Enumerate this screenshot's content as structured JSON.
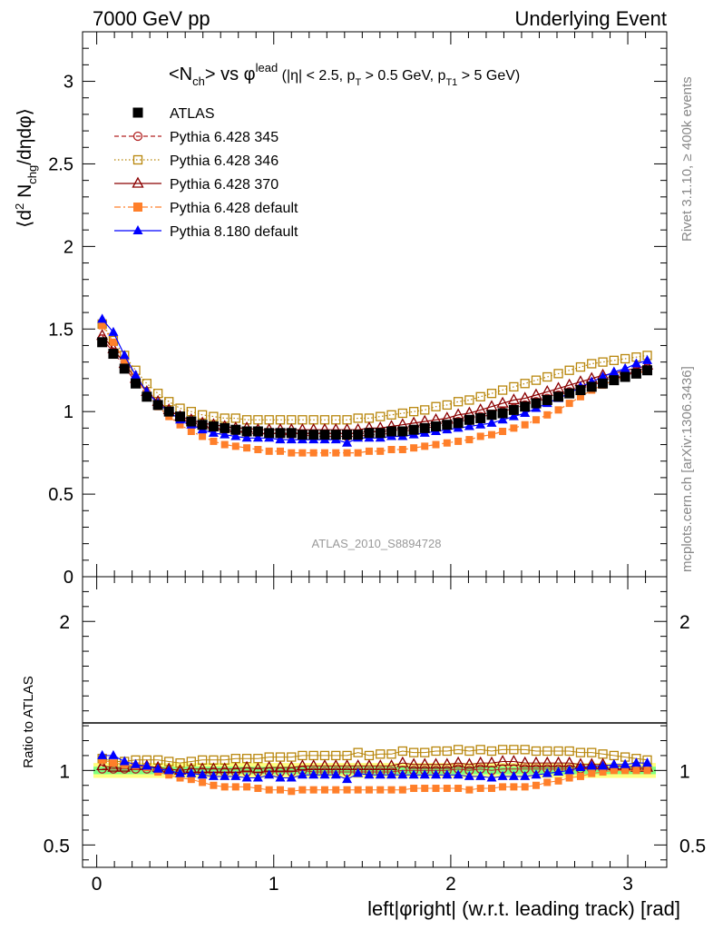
{
  "header": {
    "left": "7000 GeV pp",
    "right": "Underlying Event"
  },
  "side_labels": {
    "rivet": "Rivet 3.1.10, ≥ 400k events",
    "mcplots": "mcplots.cern.ch [arXiv:1306.3436]"
  },
  "chart_data": [
    {
      "type": "scatter",
      "panel": "main",
      "title": "<N_ch> vs φ^lead (|η| < 2.5, p_T > 0.5 GeV, p_T1 > 5 GeV)",
      "xlabel": "left|φright| (w.r.t. leading track) [rad]",
      "ylabel": "⟨d² N_chg/dηdφ⟩",
      "watermark": "ATLAS_2010_S8894728",
      "xlim": [
        -0.08,
        3.22
      ],
      "ylim": [
        0,
        3.3
      ],
      "yticks": [
        0,
        0.5,
        1,
        1.5,
        2,
        2.5,
        3
      ],
      "xticks": [
        0,
        1,
        2,
        3
      ],
      "legend_position": "top-left",
      "x": [
        0.031,
        0.094,
        0.157,
        0.22,
        0.283,
        0.346,
        0.408,
        0.471,
        0.534,
        0.597,
        0.66,
        0.723,
        0.785,
        0.848,
        0.911,
        0.974,
        1.037,
        1.1,
        1.162,
        1.225,
        1.288,
        1.351,
        1.414,
        1.476,
        1.539,
        1.602,
        1.665,
        1.728,
        1.791,
        1.853,
        1.916,
        1.979,
        2.042,
        2.105,
        2.168,
        2.231,
        2.293,
        2.356,
        2.419,
        2.482,
        2.545,
        2.608,
        2.67,
        2.733,
        2.796,
        2.859,
        2.922,
        2.985,
        3.048,
        3.11
      ],
      "series": [
        {
          "name": "ATLAS",
          "color": "#000000",
          "marker": "square-filled",
          "values": [
            1.42,
            1.35,
            1.26,
            1.17,
            1.09,
            1.04,
            1.0,
            0.97,
            0.94,
            0.92,
            0.91,
            0.9,
            0.89,
            0.88,
            0.88,
            0.87,
            0.87,
            0.87,
            0.86,
            0.86,
            0.86,
            0.86,
            0.86,
            0.86,
            0.87,
            0.87,
            0.88,
            0.88,
            0.89,
            0.9,
            0.91,
            0.92,
            0.93,
            0.95,
            0.96,
            0.98,
            0.99,
            1.01,
            1.03,
            1.05,
            1.07,
            1.09,
            1.11,
            1.13,
            1.15,
            1.17,
            1.19,
            1.21,
            1.23,
            1.25
          ]
        },
        {
          "name": "Pythia 6.428 345",
          "color": "#b22222",
          "marker": "circle-open",
          "line": "dashed",
          "values": [
            1.44,
            1.36,
            1.27,
            1.18,
            1.1,
            1.04,
            0.99,
            0.96,
            0.93,
            0.91,
            0.9,
            0.89,
            0.88,
            0.87,
            0.87,
            0.86,
            0.86,
            0.86,
            0.86,
            0.85,
            0.85,
            0.85,
            0.85,
            0.85,
            0.86,
            0.86,
            0.87,
            0.88,
            0.89,
            0.9,
            0.91,
            0.92,
            0.94,
            0.95,
            0.97,
            0.98,
            1.0,
            1.02,
            1.04,
            1.06,
            1.08,
            1.1,
            1.12,
            1.14,
            1.16,
            1.18,
            1.2,
            1.22,
            1.24,
            1.26
          ]
        },
        {
          "name": "Pythia 6.428 346",
          "color": "#b8860b",
          "marker": "square-open",
          "line": "dotted",
          "values": [
            1.53,
            1.43,
            1.34,
            1.25,
            1.17,
            1.11,
            1.06,
            1.02,
            1.0,
            0.98,
            0.97,
            0.96,
            0.96,
            0.95,
            0.95,
            0.95,
            0.95,
            0.95,
            0.95,
            0.95,
            0.95,
            0.95,
            0.95,
            0.96,
            0.96,
            0.97,
            0.98,
            0.99,
            1.0,
            1.01,
            1.03,
            1.04,
            1.06,
            1.07,
            1.09,
            1.11,
            1.13,
            1.15,
            1.17,
            1.19,
            1.21,
            1.23,
            1.25,
            1.27,
            1.29,
            1.3,
            1.31,
            1.32,
            1.33,
            1.34
          ]
        },
        {
          "name": "Pythia 6.428 370",
          "color": "#8b0000",
          "marker": "triangle-open",
          "line": "solid",
          "values": [
            1.46,
            1.38,
            1.29,
            1.2,
            1.12,
            1.06,
            1.01,
            0.97,
            0.95,
            0.93,
            0.92,
            0.91,
            0.9,
            0.9,
            0.89,
            0.89,
            0.89,
            0.89,
            0.89,
            0.89,
            0.89,
            0.89,
            0.89,
            0.89,
            0.9,
            0.9,
            0.91,
            0.92,
            0.93,
            0.94,
            0.95,
            0.96,
            0.98,
            0.99,
            1.01,
            1.03,
            1.05,
            1.07,
            1.08,
            1.1,
            1.12,
            1.14,
            1.16,
            1.18,
            1.2,
            1.22,
            1.23,
            1.25,
            1.26,
            1.28
          ]
        },
        {
          "name": "Pythia 6.428 default",
          "color": "#ff7f2a",
          "marker": "square-filled",
          "line": "dashdot",
          "values": [
            1.52,
            1.42,
            1.31,
            1.2,
            1.11,
            1.03,
            0.97,
            0.92,
            0.88,
            0.85,
            0.82,
            0.8,
            0.79,
            0.78,
            0.77,
            0.76,
            0.76,
            0.75,
            0.75,
            0.75,
            0.75,
            0.75,
            0.75,
            0.75,
            0.76,
            0.76,
            0.77,
            0.77,
            0.78,
            0.79,
            0.8,
            0.81,
            0.82,
            0.83,
            0.85,
            0.86,
            0.88,
            0.9,
            0.92,
            0.95,
            0.98,
            1.01,
            1.05,
            1.09,
            1.13,
            1.16,
            1.19,
            1.21,
            1.23,
            1.25
          ]
        },
        {
          "name": "Pythia 8.180 default",
          "color": "#0000ff",
          "marker": "triangle-filled",
          "line": "solid",
          "values": [
            1.56,
            1.48,
            1.34,
            1.22,
            1.12,
            1.05,
            1.0,
            0.95,
            0.92,
            0.89,
            0.87,
            0.86,
            0.85,
            0.84,
            0.84,
            0.84,
            0.83,
            0.83,
            0.83,
            0.83,
            0.83,
            0.83,
            0.81,
            0.84,
            0.84,
            0.84,
            0.85,
            0.85,
            0.86,
            0.87,
            0.88,
            0.89,
            0.9,
            0.91,
            0.92,
            0.93,
            0.95,
            0.97,
            0.99,
            1.02,
            1.05,
            1.08,
            1.11,
            1.15,
            1.18,
            1.21,
            1.24,
            1.26,
            1.29,
            1.31
          ]
        }
      ]
    },
    {
      "type": "scatter",
      "panel": "ratio",
      "ylabel": "Ratio to ATLAS",
      "xlim": [
        -0.08,
        3.22
      ],
      "ylim": [
        0.35,
        2.3
      ],
      "yticks": [
        0.5,
        1,
        2
      ],
      "xticks": [
        0,
        1,
        2,
        3
      ],
      "x": [
        0.031,
        0.094,
        0.157,
        0.22,
        0.283,
        0.346,
        0.408,
        0.471,
        0.534,
        0.597,
        0.66,
        0.723,
        0.785,
        0.848,
        0.911,
        0.974,
        1.037,
        1.1,
        1.162,
        1.225,
        1.288,
        1.351,
        1.414,
        1.476,
        1.539,
        1.602,
        1.665,
        1.728,
        1.791,
        1.853,
        1.916,
        1.979,
        2.042,
        2.105,
        2.168,
        2.231,
        2.293,
        2.356,
        2.419,
        2.482,
        2.545,
        2.608,
        2.67,
        2.733,
        2.796,
        2.859,
        2.922,
        2.985,
        3.048,
        3.11
      ],
      "band": {
        "inner_halfwidth": 0.025,
        "outer_halfwidth": 0.05,
        "inner_color": "#7fff7f",
        "outer_color": "#ffff80"
      },
      "series": [
        {
          "name": "Pythia 6.428 345",
          "color": "#b22222",
          "marker": "circle-open",
          "values": [
            1.01,
            1.01,
            1.01,
            1.01,
            1.01,
            1.0,
            0.99,
            0.99,
            0.99,
            0.99,
            0.99,
            0.99,
            0.99,
            0.99,
            0.99,
            0.99,
            0.99,
            0.99,
            1.0,
            0.99,
            0.99,
            0.99,
            0.99,
            0.99,
            0.99,
            0.99,
            0.99,
            1.0,
            1.0,
            1.0,
            1.0,
            1.0,
            1.01,
            1.0,
            1.01,
            1.0,
            1.01,
            1.01,
            1.01,
            1.01,
            1.01,
            1.01,
            1.01,
            1.01,
            1.01,
            1.01,
            1.01,
            1.01,
            1.01,
            1.01
          ]
        },
        {
          "name": "Pythia 6.428 346",
          "color": "#b8860b",
          "marker": "square-open",
          "values": [
            1.08,
            1.06,
            1.06,
            1.07,
            1.07,
            1.07,
            1.06,
            1.05,
            1.06,
            1.07,
            1.07,
            1.07,
            1.08,
            1.08,
            1.08,
            1.09,
            1.09,
            1.09,
            1.1,
            1.1,
            1.1,
            1.1,
            1.1,
            1.12,
            1.1,
            1.11,
            1.11,
            1.13,
            1.12,
            1.12,
            1.13,
            1.13,
            1.14,
            1.13,
            1.14,
            1.13,
            1.14,
            1.14,
            1.14,
            1.13,
            1.13,
            1.13,
            1.13,
            1.12,
            1.12,
            1.11,
            1.1,
            1.09,
            1.08,
            1.07
          ]
        },
        {
          "name": "Pythia 6.428 370",
          "color": "#8b0000",
          "marker": "triangle-open",
          "values": [
            1.03,
            1.02,
            1.02,
            1.03,
            1.03,
            1.02,
            1.01,
            1.0,
            1.01,
            1.01,
            1.01,
            1.01,
            1.01,
            1.02,
            1.01,
            1.02,
            1.02,
            1.02,
            1.03,
            1.03,
            1.03,
            1.03,
            1.03,
            1.03,
            1.03,
            1.03,
            1.03,
            1.05,
            1.04,
            1.04,
            1.04,
            1.04,
            1.05,
            1.04,
            1.05,
            1.05,
            1.06,
            1.06,
            1.05,
            1.05,
            1.05,
            1.05,
            1.05,
            1.04,
            1.04,
            1.04,
            1.03,
            1.03,
            1.02,
            1.02
          ]
        },
        {
          "name": "Pythia 6.428 default",
          "color": "#ff7f2a",
          "marker": "square-filled",
          "values": [
            1.07,
            1.05,
            1.04,
            1.03,
            1.02,
            0.99,
            0.97,
            0.95,
            0.94,
            0.92,
            0.9,
            0.89,
            0.89,
            0.89,
            0.88,
            0.87,
            0.87,
            0.86,
            0.87,
            0.87,
            0.87,
            0.87,
            0.87,
            0.87,
            0.87,
            0.87,
            0.87,
            0.87,
            0.88,
            0.88,
            0.88,
            0.88,
            0.88,
            0.87,
            0.88,
            0.88,
            0.89,
            0.89,
            0.89,
            0.9,
            0.92,
            0.93,
            0.95,
            0.96,
            0.98,
            0.99,
            1.0,
            1.0,
            1.0,
            1.0
          ]
        },
        {
          "name": "Pythia 8.180 default",
          "color": "#0000ff",
          "marker": "triangle-filled",
          "values": [
            1.1,
            1.1,
            1.06,
            1.04,
            1.03,
            1.01,
            1.0,
            0.98,
            0.98,
            0.97,
            0.96,
            0.96,
            0.96,
            0.95,
            0.95,
            0.97,
            0.95,
            0.95,
            0.97,
            0.97,
            0.97,
            0.97,
            0.94,
            0.98,
            0.97,
            0.97,
            0.97,
            0.97,
            0.97,
            0.97,
            0.97,
            0.97,
            0.97,
            0.96,
            0.96,
            0.95,
            0.96,
            0.96,
            0.96,
            0.97,
            0.98,
            0.99,
            1.0,
            1.02,
            1.03,
            1.03,
            1.04,
            1.04,
            1.05,
            1.05
          ]
        }
      ]
    }
  ]
}
